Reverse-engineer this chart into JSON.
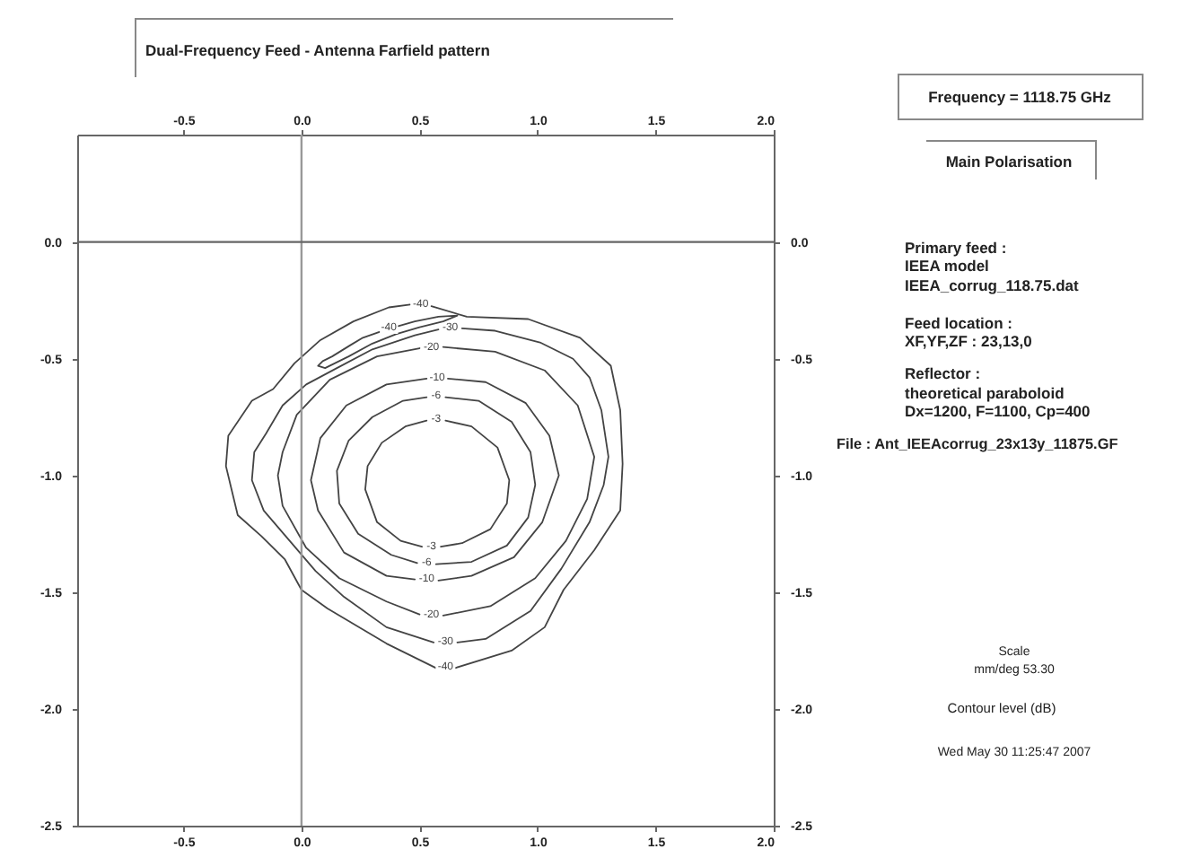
{
  "chart_data": {
    "type": "line",
    "title": "Dual-Frequency Feed - Antenna Farfield pattern",
    "xlim": [
      -0.95,
      2.0
    ],
    "xticks": [
      -0.5,
      {
        "value": 0,
        "label": "0.0"
      },
      0.5,
      {
        "value": 1,
        "label": "1.0"
      },
      1.5,
      {
        "value": 2,
        "label": "2.0"
      }
    ],
    "x2lim": [
      -0.95,
      2.0
    ],
    "x2ticks": [
      -0.5,
      {
        "value": 0,
        "label": "0.0"
      },
      0.5,
      {
        "value": 1,
        "label": "1.0"
      },
      1.5,
      {
        "value": 2,
        "label": "2.0"
      }
    ],
    "ylim": [
      -2.5,
      0.46
    ],
    "yticks": [
      -2.5,
      {
        "value": -2,
        "label": "-2.0"
      },
      -1.5,
      {
        "value": -1,
        "label": "-1.0"
      },
      -0.5,
      {
        "value": 0,
        "label": "0.0"
      }
    ],
    "y2lim": [
      -2.5,
      0.46
    ],
    "y2ticks": [
      -2.5,
      {
        "value": -2,
        "label": "-2.0"
      },
      -1.5,
      {
        "value": -1,
        "label": "-1.0"
      },
      -0.5,
      {
        "value": 0,
        "label": "0.0"
      }
    ],
    "ref_lines": [
      {
        "axis": "x",
        "value": 0,
        "color": "#999999"
      },
      {
        "axis": "y",
        "value": 0,
        "color": "#666666"
      }
    ],
    "series": [
      {
        "name": "-3",
        "color": "#444444",
        "x": [
          0.61,
          0.72,
          0.83,
          0.88,
          0.87,
          0.8,
          0.68,
          0.59,
          0.55,
          0.51,
          0.42,
          0.32,
          0.27,
          0.28,
          0.34,
          0.44,
          0.53
        ],
        "values": [
          -0.765,
          -0.79,
          -0.88,
          -1.02,
          -1.12,
          -1.23,
          -1.29,
          -1.305,
          null,
          -1.305,
          -1.28,
          -1.2,
          -1.06,
          -0.96,
          -0.86,
          -0.79,
          -0.765
        ]
      },
      {
        "name": "-6",
        "color": "#444444",
        "x": [
          0.61,
          0.75,
          0.89,
          0.97,
          0.99,
          0.96,
          0.87,
          0.72,
          0.57,
          0.53,
          0.49,
          0.38,
          0.24,
          0.16,
          0.15,
          0.2,
          0.3,
          0.43,
          0.53
        ],
        "values": [
          -0.665,
          -0.68,
          -0.77,
          -0.9,
          -1.04,
          -1.18,
          -1.3,
          -1.37,
          -1.38,
          null,
          -1.375,
          -1.34,
          -1.25,
          -1.12,
          -0.98,
          -0.85,
          -0.75,
          -0.68,
          -0.665
        ]
      },
      {
        "name": "-10",
        "color": "#444444",
        "x": [
          0.62,
          0.78,
          0.95,
          1.05,
          1.09,
          1.02,
          0.9,
          0.72,
          0.58,
          0.53,
          0.48,
          0.36,
          0.18,
          0.07,
          0.04,
          0.08,
          0.19,
          0.36,
          0.53
        ],
        "values": [
          -0.585,
          -0.6,
          -0.69,
          -0.83,
          -1.0,
          -1.2,
          -1.35,
          -1.43,
          -1.45,
          null,
          -1.445,
          -1.43,
          -1.33,
          -1.15,
          -1.02,
          -0.84,
          -0.7,
          -0.61,
          -0.585
        ]
      },
      {
        "name": "-20",
        "color": "#444444",
        "x": [
          0.6,
          0.82,
          1.03,
          1.17,
          1.24,
          1.21,
          1.12,
          0.99,
          0.8,
          0.6,
          0.55,
          0.5,
          0.36,
          0.16,
          0.02,
          -0.08,
          -0.1,
          -0.08,
          -0.02,
          0.12,
          0.32,
          0.5
        ],
        "values": [
          -0.45,
          -0.47,
          -0.55,
          -0.7,
          -0.92,
          -1.1,
          -1.28,
          -1.44,
          -1.56,
          -1.6,
          null,
          -1.595,
          -1.54,
          -1.44,
          -1.31,
          -1.13,
          -1.0,
          -0.9,
          -0.74,
          -0.59,
          -0.49,
          -0.455
        ]
      },
      {
        "name": "-30",
        "color": "#444444",
        "x": [
          0.68,
          0.82,
          1.01,
          1.15,
          1.22,
          1.27,
          1.3,
          1.28,
          1.22,
          1.1,
          0.97,
          0.78,
          0.66,
          0.61,
          0.56,
          0.36,
          0.18,
          0.06,
          -0.05,
          -0.16,
          -0.21,
          -0.2,
          -0.15,
          -0.08,
          0.02,
          0.15,
          0.3,
          0.48,
          0.58
        ],
        "values": [
          -0.37,
          -0.38,
          -0.43,
          -0.5,
          -0.58,
          -0.72,
          -0.92,
          -1.04,
          -1.2,
          -1.4,
          -1.58,
          -1.7,
          -1.715,
          null,
          -1.715,
          -1.65,
          -1.52,
          -1.41,
          -1.28,
          -1.15,
          -1.02,
          -0.9,
          -0.82,
          -0.7,
          -0.61,
          -0.54,
          -0.46,
          -0.4,
          -0.375
        ]
      },
      {
        "name": "-40",
        "color": "#444444",
        "x": [
          0.55,
          0.7,
          0.96,
          1.18,
          1.31,
          1.35,
          1.36,
          1.35,
          1.24,
          1.11,
          1.03,
          0.89,
          0.65,
          0.61,
          0.57,
          0.36,
          0.11,
          0.0,
          -0.07,
          -0.17,
          -0.27,
          -0.32,
          -0.31,
          -0.21,
          -0.12,
          -0.03,
          0.08,
          0.22,
          0.37,
          0.46
        ],
        "values": [
          -0.275,
          -0.32,
          -0.33,
          -0.41,
          -0.53,
          -0.72,
          -0.95,
          -1.15,
          -1.32,
          -1.49,
          -1.65,
          -1.75,
          -1.825,
          null,
          -1.825,
          -1.72,
          -1.57,
          -1.49,
          -1.36,
          -1.26,
          -1.17,
          -0.96,
          -0.83,
          -0.68,
          -0.63,
          -0.52,
          -0.42,
          -0.34,
          -0.28,
          -0.268
        ]
      },
      {
        "name": "-40",
        "color": "#444444",
        "x": [
          0.41,
          0.48,
          0.58,
          0.66,
          0.6,
          0.5,
          0.4,
          0.3,
          0.2,
          0.1,
          0.07,
          0.09,
          0.13,
          0.17,
          0.21,
          0.26,
          0.33
        ],
        "values": [
          -0.36,
          -0.34,
          -0.32,
          -0.315,
          -0.34,
          -0.365,
          -0.395,
          -0.435,
          -0.49,
          -0.54,
          -0.53,
          -0.51,
          -0.49,
          -0.465,
          -0.44,
          -0.41,
          -0.385
        ]
      }
    ],
    "annotations": [
      "Frequency = 1118.75 GHz",
      "Main Polarisation",
      "Primary feed :\nIEEA model\nIEEA_corrug_118.75.dat",
      "Feed location :\nXF,YF,ZF : 23,13,0",
      "Reflector :\ntheoretical paraboloid\nDx=1200, F=1100, Cp=400",
      "File : Ant_IEEAcorrug_23x13y_11875.GF",
      "Scale\nmm/deg 53.30",
      "Contour level (dB)",
      "Wed May 30 11:25:47 2007"
    ]
  }
}
